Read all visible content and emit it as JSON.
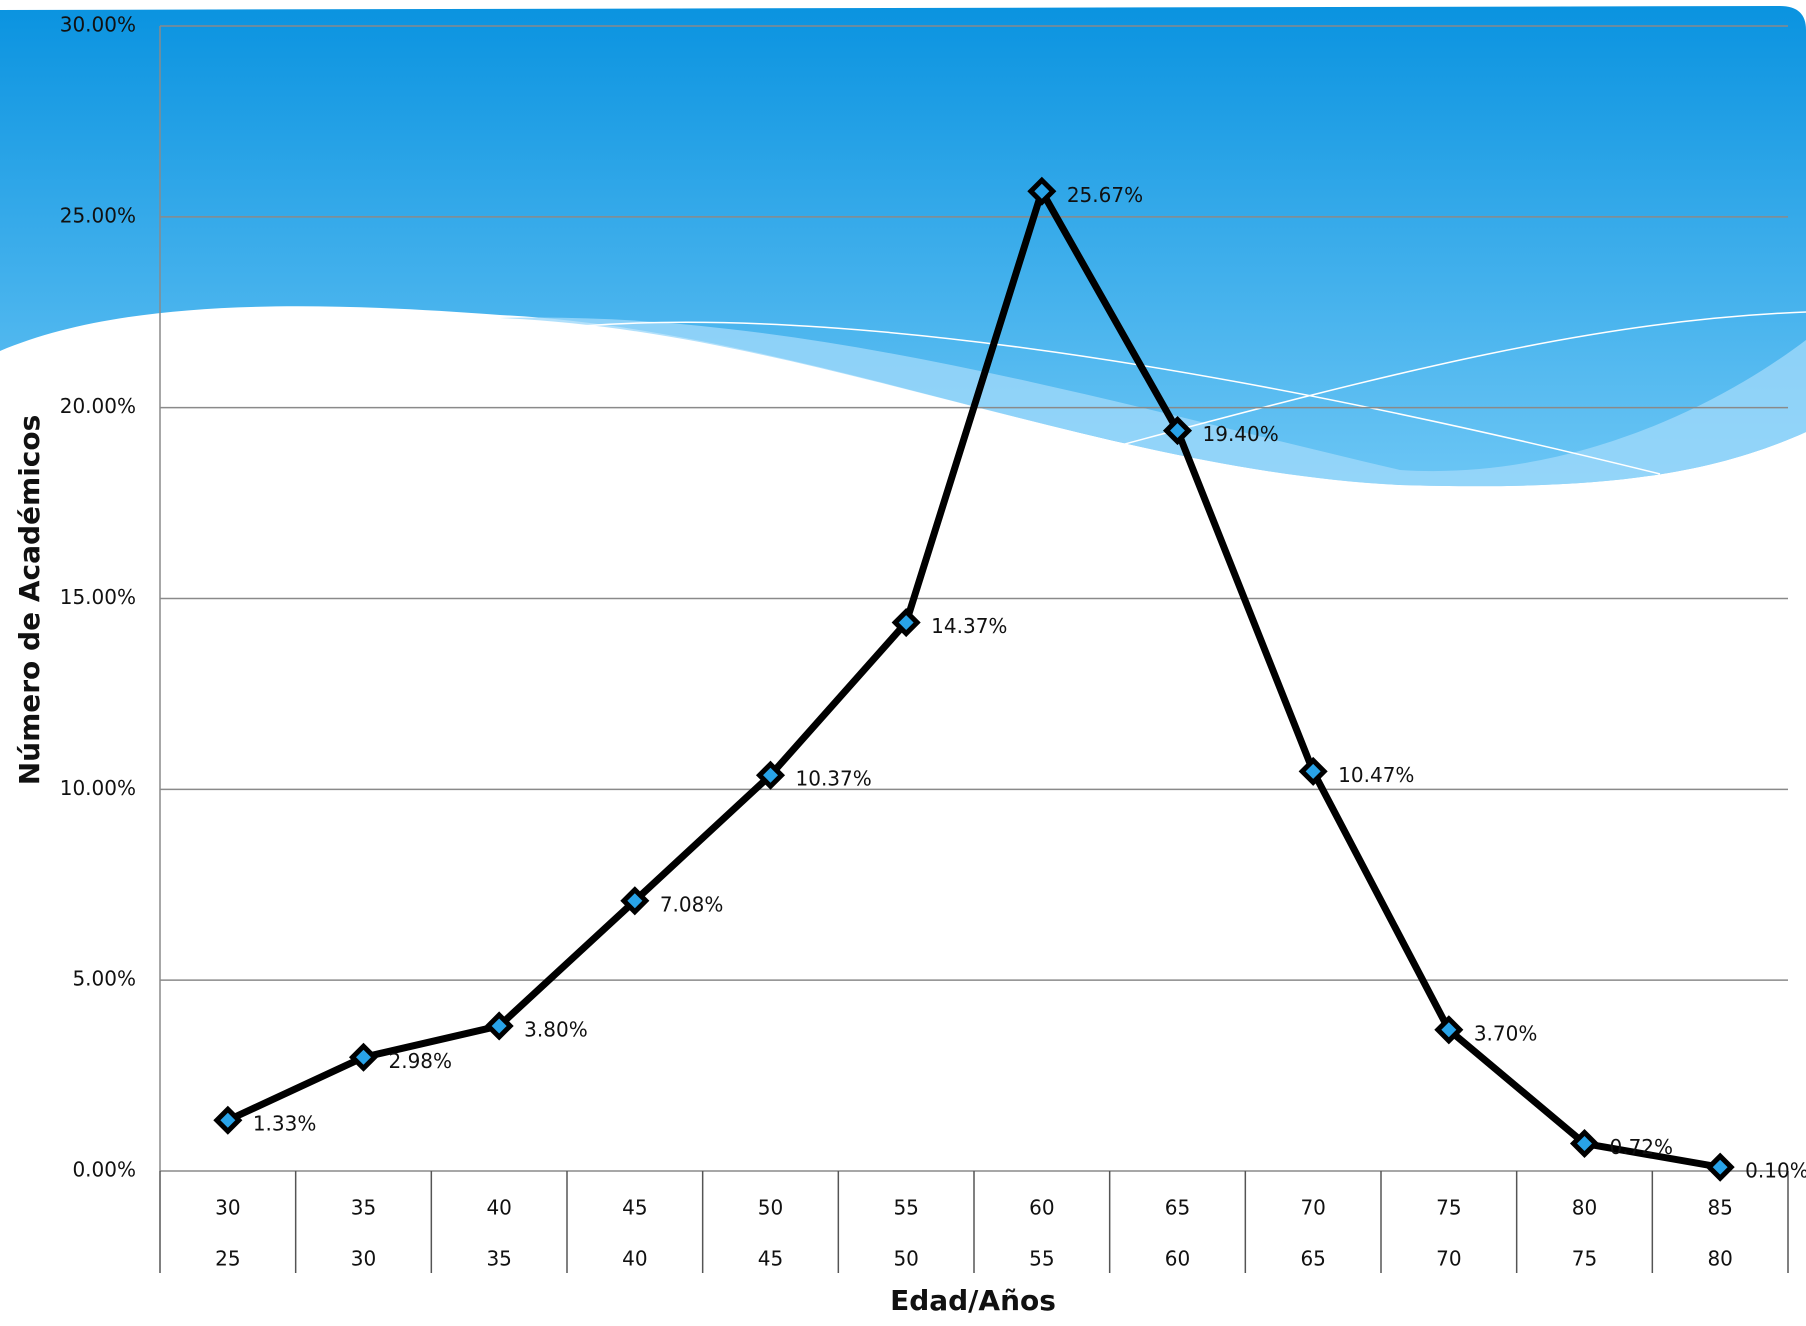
{
  "chart_data": {
    "type": "line",
    "x_label": "Edad/Años",
    "y_label": "Número de Académicos",
    "categories": [
      [
        "30",
        "25"
      ],
      [
        "35",
        "30"
      ],
      [
        "40",
        "35"
      ],
      [
        "45",
        "40"
      ],
      [
        "50",
        "45"
      ],
      [
        "55",
        "50"
      ],
      [
        "60",
        "55"
      ],
      [
        "65",
        "60"
      ],
      [
        "70",
        "65"
      ],
      [
        "75",
        "70"
      ],
      [
        "80",
        "75"
      ],
      [
        "85",
        "80"
      ]
    ],
    "series": [
      {
        "name": null,
        "color": "#000000",
        "marker_color": "#29a3e8",
        "values": [
          1.33,
          2.98,
          3.8,
          7.08,
          10.37,
          14.37,
          25.67,
          19.4,
          10.47,
          3.7,
          0.72,
          0.1
        ],
        "value_labels": [
          "1.33%",
          "2.98%",
          "3.80%",
          "7.08%",
          "10.37%",
          "14.37%",
          "25.67%",
          "19.40%",
          "10.47%",
          "3.70%",
          "0.72%",
          "0.10%"
        ]
      }
    ],
    "ylim": [
      0,
      30
    ],
    "yticks": [
      {
        "value": 0,
        "label": "0.00%"
      },
      {
        "value": 5,
        "label": "5.00%"
      },
      {
        "value": 10,
        "label": "10.00%"
      },
      {
        "value": 15,
        "label": "15.00%"
      },
      {
        "value": 20,
        "label": "20.00%"
      },
      {
        "value": 25,
        "label": "25.00%"
      },
      {
        "value": 30,
        "label": "30.00%"
      }
    ],
    "grid": true
  }
}
